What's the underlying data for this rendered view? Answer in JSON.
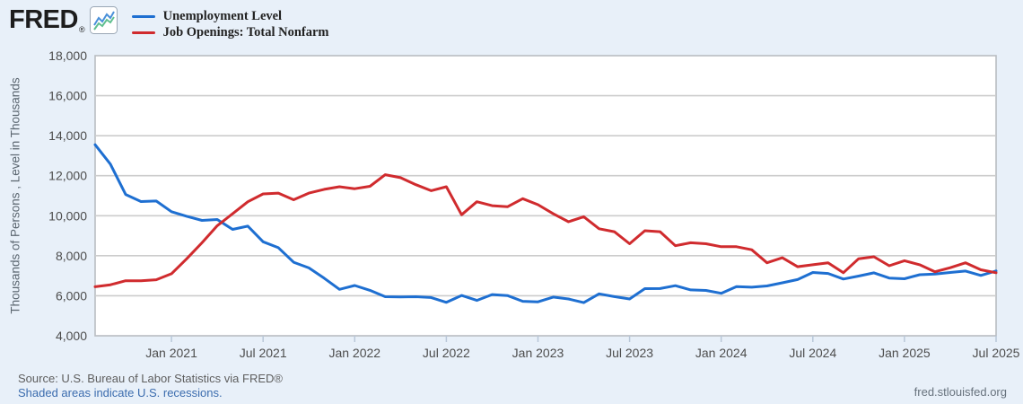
{
  "header": {
    "logo_text": "FRED",
    "registered_mark": "®",
    "legend": [
      {
        "label": "Unemployment Level",
        "color": "#1e6fd1"
      },
      {
        "label": "Job Openings: Total Nonfarm",
        "color": "#d02b2e"
      }
    ]
  },
  "chart_data": {
    "type": "line",
    "title": "",
    "xlabel": "",
    "ylabel": "Thousands of Persons , Level in Thousands",
    "ylim": [
      4000,
      18000
    ],
    "ytick_step": 2000,
    "grid": true,
    "legend_position": "top-left",
    "plot_background": "#ffffff",
    "gridline_color": "#cccccc",
    "yticks": [
      {
        "value": 18000,
        "label": "18,000"
      },
      {
        "value": 16000,
        "label": "16,000"
      },
      {
        "value": 14000,
        "label": "14,000"
      },
      {
        "value": 12000,
        "label": "12,000"
      },
      {
        "value": 10000,
        "label": "10,000"
      },
      {
        "value": 8000,
        "label": "8,000"
      },
      {
        "value": 6000,
        "label": "6,000"
      },
      {
        "value": 4000,
        "label": "4,000"
      }
    ],
    "xticks": [
      {
        "index": 5,
        "label": "Jan 2021"
      },
      {
        "index": 11,
        "label": "Jul 2021"
      },
      {
        "index": 17,
        "label": "Jan 2022"
      },
      {
        "index": 23,
        "label": "Jul 2022"
      },
      {
        "index": 29,
        "label": "Jan 2023"
      },
      {
        "index": 35,
        "label": "Jul 2023"
      },
      {
        "index": 41,
        "label": "Jan 2024"
      },
      {
        "index": 47,
        "label": "Jul 2024"
      },
      {
        "index": 53,
        "label": "Jan 2025"
      },
      {
        "index": 59,
        "label": "Jul 2025"
      }
    ],
    "x_months": [
      "2020-08",
      "2020-09",
      "2020-10",
      "2020-11",
      "2020-12",
      "2021-01",
      "2021-02",
      "2021-03",
      "2021-04",
      "2021-05",
      "2021-06",
      "2021-07",
      "2021-08",
      "2021-09",
      "2021-10",
      "2021-11",
      "2021-12",
      "2022-01",
      "2022-02",
      "2022-03",
      "2022-04",
      "2022-05",
      "2022-06",
      "2022-07",
      "2022-08",
      "2022-09",
      "2022-10",
      "2022-11",
      "2022-12",
      "2023-01",
      "2023-02",
      "2023-03",
      "2023-04",
      "2023-05",
      "2023-06",
      "2023-07",
      "2023-08",
      "2023-09",
      "2023-10",
      "2023-11",
      "2023-12",
      "2024-01",
      "2024-02",
      "2024-03",
      "2024-04",
      "2024-05",
      "2024-06",
      "2024-07",
      "2024-08",
      "2024-09",
      "2024-10",
      "2024-11",
      "2024-12",
      "2025-01",
      "2025-02",
      "2025-03",
      "2025-04",
      "2025-05",
      "2025-06",
      "2025-07"
    ],
    "series": [
      {
        "name": "Unemployment Level",
        "color": "#1e6fd1",
        "values": [
          13550,
          12580,
          11061,
          10710,
          10736,
          10202,
          9972,
          9767,
          9812,
          9316,
          9480,
          8697,
          8403,
          7674,
          7391,
          6877,
          6319,
          6513,
          6270,
          5952,
          5941,
          5950,
          5912,
          5670,
          6014,
          5769,
          6059,
          6011,
          5722,
          5694,
          5936,
          5839,
          5657,
          6097,
          5957,
          5841,
          6355,
          6360,
          6506,
          6291,
          6268,
          6124,
          6458,
          6429,
          6492,
          6649,
          6811,
          7163,
          7115,
          6834,
          6984,
          7145,
          6886,
          6849,
          7052,
          7083,
          7165,
          7237,
          7015,
          7240
        ]
      },
      {
        "name": "Job Openings: Total Nonfarm",
        "color": "#d02b2e",
        "values": [
          6450,
          6550,
          6750,
          6750,
          6800,
          7100,
          7850,
          8650,
          9500,
          10100,
          10700,
          11090,
          11130,
          10800,
          11130,
          11320,
          11450,
          11350,
          11470,
          12050,
          11900,
          11550,
          11250,
          11450,
          10050,
          10700,
          10500,
          10450,
          10850,
          10550,
          10100,
          9700,
          9950,
          9350,
          9200,
          8600,
          9250,
          9200,
          8500,
          8650,
          8600,
          8450,
          8450,
          8300,
          7650,
          7900,
          7450,
          7550,
          7650,
          7150,
          7850,
          7950,
          7500,
          7750,
          7550,
          7200,
          7400,
          7650,
          7300,
          7150
        ]
      }
    ]
  },
  "footer": {
    "source": "Source: U.S. Bureau of Labor Statistics via FRED®",
    "recession_note": "Shaded areas indicate U.S. recessions.",
    "site": "fred.stlouisfed.org"
  }
}
